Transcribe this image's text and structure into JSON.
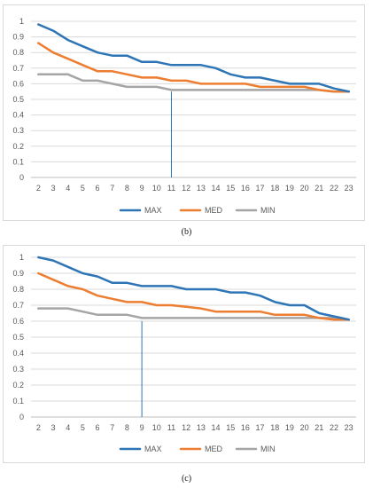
{
  "chart_data": [
    {
      "type": "line",
      "panel_label": "(b)",
      "x": [
        2,
        3,
        4,
        5,
        6,
        7,
        8,
        9,
        10,
        11,
        12,
        13,
        14,
        15,
        16,
        17,
        18,
        19,
        20,
        21,
        22,
        23
      ],
      "ylim": [
        0,
        1
      ],
      "yticks": [
        0,
        0.1,
        0.2,
        0.3,
        0.4,
        0.5,
        0.6,
        0.7,
        0.8,
        0.9,
        1
      ],
      "grid": true,
      "legend_position": "bottom",
      "marker_x": 11,
      "marker_y": 0.55,
      "series": [
        {
          "name": "MAX",
          "color": "#2e75b6",
          "values": [
            0.98,
            0.94,
            0.88,
            0.84,
            0.8,
            0.78,
            0.78,
            0.74,
            0.74,
            0.72,
            0.72,
            0.72,
            0.7,
            0.66,
            0.64,
            0.64,
            0.62,
            0.6,
            0.6,
            0.6,
            0.57,
            0.55
          ]
        },
        {
          "name": "MED",
          "color": "#ed7d31",
          "values": [
            0.86,
            0.8,
            0.76,
            0.72,
            0.68,
            0.68,
            0.66,
            0.64,
            0.64,
            0.62,
            0.62,
            0.6,
            0.6,
            0.6,
            0.6,
            0.58,
            0.58,
            0.58,
            0.58,
            0.56,
            0.55,
            0.55
          ]
        },
        {
          "name": "MIN",
          "color": "#a5a5a5",
          "values": [
            0.66,
            0.66,
            0.66,
            0.62,
            0.62,
            0.6,
            0.58,
            0.58,
            0.58,
            0.56,
            0.56,
            0.56,
            0.56,
            0.56,
            0.56,
            0.56,
            0.56,
            0.56,
            0.56,
            0.56,
            0.55,
            0.55
          ]
        }
      ]
    },
    {
      "type": "line",
      "panel_label": "(c)",
      "x": [
        2,
        3,
        4,
        5,
        6,
        7,
        8,
        9,
        10,
        11,
        12,
        13,
        14,
        15,
        16,
        17,
        18,
        19,
        20,
        21,
        22,
        23
      ],
      "ylim": [
        0,
        1
      ],
      "yticks": [
        0,
        0.1,
        0.2,
        0.3,
        0.4,
        0.5,
        0.6,
        0.7,
        0.8,
        0.9,
        1
      ],
      "grid": true,
      "legend_position": "bottom",
      "marker_x": 9,
      "marker_y": 0.6,
      "series": [
        {
          "name": "MAX",
          "color": "#2e75b6",
          "values": [
            1.0,
            0.98,
            0.94,
            0.9,
            0.88,
            0.84,
            0.84,
            0.82,
            0.82,
            0.82,
            0.8,
            0.8,
            0.8,
            0.78,
            0.78,
            0.76,
            0.72,
            0.7,
            0.7,
            0.65,
            0.63,
            0.61
          ]
        },
        {
          "name": "MED",
          "color": "#ed7d31",
          "values": [
            0.9,
            0.86,
            0.82,
            0.8,
            0.76,
            0.74,
            0.72,
            0.72,
            0.7,
            0.7,
            0.69,
            0.68,
            0.66,
            0.66,
            0.66,
            0.66,
            0.64,
            0.64,
            0.64,
            0.62,
            0.61,
            0.61
          ]
        },
        {
          "name": "MIN",
          "color": "#a5a5a5",
          "values": [
            0.68,
            0.68,
            0.68,
            0.66,
            0.64,
            0.64,
            0.64,
            0.62,
            0.62,
            0.62,
            0.62,
            0.62,
            0.62,
            0.62,
            0.62,
            0.62,
            0.62,
            0.62,
            0.62,
            0.62,
            0.62,
            0.61
          ]
        }
      ]
    }
  ]
}
